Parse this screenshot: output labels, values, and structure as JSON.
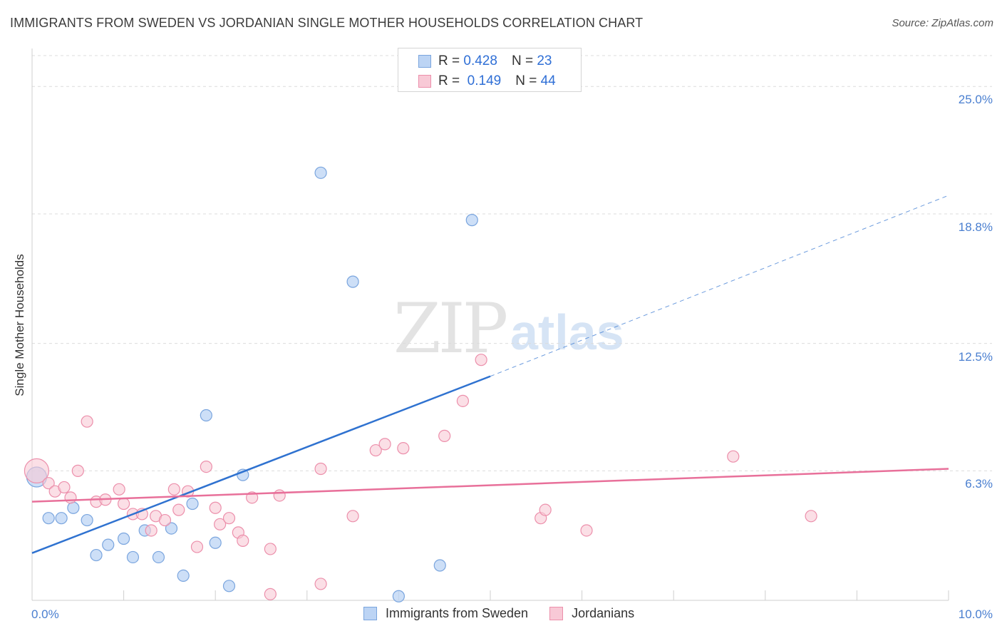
{
  "title": "IMMIGRANTS FROM SWEDEN VS JORDANIAN SINGLE MOTHER HOUSEHOLDS CORRELATION CHART",
  "source": "Source: ZipAtlas.com",
  "watermark": {
    "part1": "ZIP",
    "part2": "atlas"
  },
  "colors": {
    "blue_fill": "#bcd4f4",
    "blue_stroke": "#7aa5de",
    "blue_line": "#2f72d0",
    "pink_fill": "#f8c9d6",
    "pink_stroke": "#ec8fab",
    "pink_line": "#e8709a",
    "grid": "#dcdcdc",
    "tick_label": "#4a7fd0"
  },
  "legend_top": [
    {
      "r_label": "R =",
      "r_value": "0.428",
      "n_label": "N =",
      "n_value": "23"
    },
    {
      "r_label": "R =",
      "r_value": "0.149",
      "n_label": "N =",
      "n_value": "44"
    }
  ],
  "chart_data": {
    "type": "scatter",
    "title": "IMMIGRANTS FROM SWEDEN VS JORDANIAN SINGLE MOTHER HOUSEHOLDS CORRELATION CHART",
    "xlabel": "",
    "ylabel": "Single Mother Households",
    "xlim": [
      0,
      10
    ],
    "ylim": [
      0,
      26.5
    ],
    "x_tick_labels": [
      "0.0%",
      "10.0%"
    ],
    "y_ticks": [
      6.3,
      12.5,
      18.8,
      25.0
    ],
    "y_tick_labels": [
      "6.3%",
      "12.5%",
      "18.8%",
      "25.0%"
    ],
    "grid": "horizontal dashed",
    "legend_placement": "top-center and bottom",
    "series": [
      {
        "name": "Immigrants from Sweden",
        "color": "blue",
        "points": [
          [
            0.05,
            6.0
          ],
          [
            0.18,
            4.0
          ],
          [
            0.32,
            4.0
          ],
          [
            0.45,
            4.5
          ],
          [
            0.6,
            3.9
          ],
          [
            0.7,
            2.2
          ],
          [
            0.83,
            2.7
          ],
          [
            1.0,
            3.0
          ],
          [
            1.1,
            2.1
          ],
          [
            1.23,
            3.4
          ],
          [
            1.38,
            2.1
          ],
          [
            1.52,
            3.5
          ],
          [
            1.65,
            1.2
          ],
          [
            1.75,
            4.7
          ],
          [
            1.9,
            9.0
          ],
          [
            2.0,
            2.8
          ],
          [
            2.15,
            0.7
          ],
          [
            2.3,
            6.1
          ],
          [
            3.15,
            20.8
          ],
          [
            3.5,
            15.5
          ],
          [
            4.0,
            0.2
          ],
          [
            4.45,
            1.7
          ],
          [
            4.8,
            18.5
          ]
        ],
        "trend": {
          "x0": 0,
          "y0": 2.3,
          "x1": 5.0,
          "y1": 10.9,
          "dashed_to_x": 10.0,
          "dashed_to_y": 19.7
        }
      },
      {
        "name": "Jordanians",
        "color": "pink",
        "points": [
          [
            0.05,
            6.3
          ],
          [
            0.18,
            5.7
          ],
          [
            0.25,
            5.3
          ],
          [
            0.35,
            5.5
          ],
          [
            0.42,
            5.0
          ],
          [
            0.5,
            6.3
          ],
          [
            0.6,
            8.7
          ],
          [
            0.7,
            4.8
          ],
          [
            0.8,
            4.9
          ],
          [
            0.95,
            5.4
          ],
          [
            1.0,
            4.7
          ],
          [
            1.1,
            4.2
          ],
          [
            1.2,
            4.2
          ],
          [
            1.3,
            3.4
          ],
          [
            1.35,
            4.1
          ],
          [
            1.45,
            3.9
          ],
          [
            1.55,
            5.4
          ],
          [
            1.6,
            4.4
          ],
          [
            1.7,
            5.3
          ],
          [
            1.8,
            2.6
          ],
          [
            1.9,
            6.5
          ],
          [
            2.0,
            4.5
          ],
          [
            2.05,
            3.7
          ],
          [
            2.15,
            4.0
          ],
          [
            2.25,
            3.3
          ],
          [
            2.3,
            2.9
          ],
          [
            2.4,
            5.0
          ],
          [
            2.6,
            0.3
          ],
          [
            2.6,
            2.5
          ],
          [
            2.7,
            5.1
          ],
          [
            3.15,
            0.8
          ],
          [
            3.15,
            6.4
          ],
          [
            3.5,
            4.1
          ],
          [
            3.75,
            7.3
          ],
          [
            3.85,
            7.6
          ],
          [
            4.05,
            7.4
          ],
          [
            4.5,
            8.0
          ],
          [
            4.7,
            9.7
          ],
          [
            4.9,
            11.7
          ],
          [
            5.55,
            4.0
          ],
          [
            5.6,
            4.4
          ],
          [
            6.05,
            3.4
          ],
          [
            7.65,
            7.0
          ],
          [
            8.5,
            4.1
          ]
        ],
        "trend": {
          "x0": 0,
          "y0": 4.8,
          "x1": 10.0,
          "y1": 6.4
        }
      }
    ]
  }
}
